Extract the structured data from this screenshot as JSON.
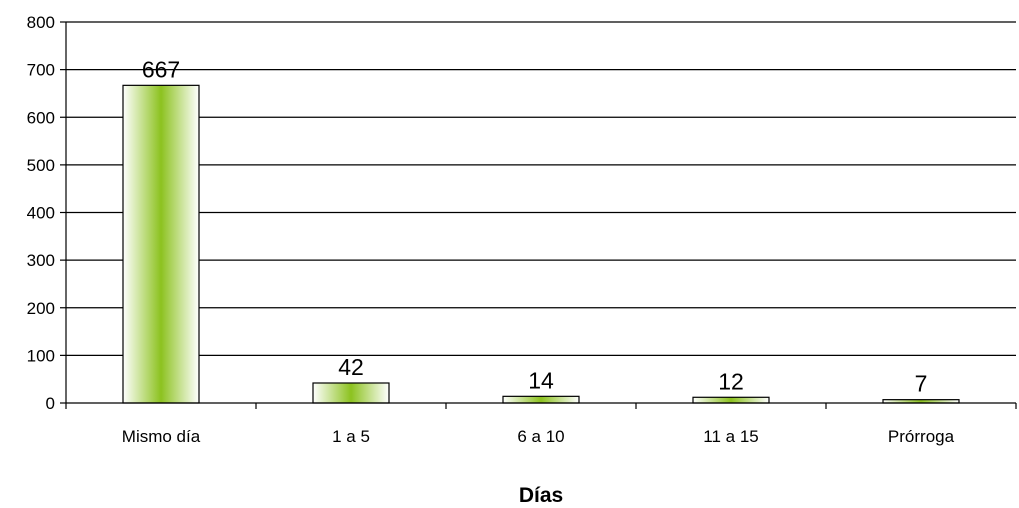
{
  "chart_data": {
    "type": "bar",
    "title": "",
    "xlabel": "Días",
    "ylabel": "",
    "categories": [
      "Mismo día",
      "1 a 5",
      "6 a 10",
      "11 a 15",
      "Prórroga"
    ],
    "values": [
      667,
      42,
      14,
      12,
      7
    ],
    "data_labels": [
      "667",
      "42",
      "14",
      "12",
      "7"
    ],
    "ylim": [
      0,
      800
    ],
    "yticks": [
      0,
      100,
      200,
      300,
      400,
      500,
      600,
      700,
      800
    ],
    "ytick_labels": [
      "0",
      "100",
      "200",
      "300",
      "400",
      "500",
      "600",
      "700",
      "800"
    ],
    "grid": "horizontal",
    "legend": "none",
    "colors": {
      "bar_center": "#8cc21f",
      "bar_edge": "#ffffff",
      "bar_outline": "#000000",
      "gridline": "#000000",
      "axis": "#000000"
    }
  }
}
